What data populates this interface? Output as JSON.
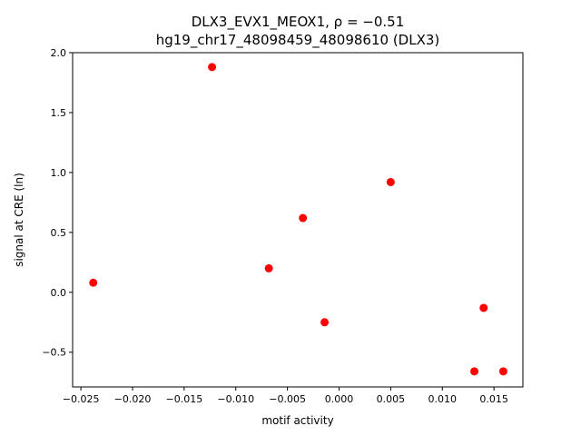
{
  "chart_data": {
    "type": "scatter",
    "title_line1": "DLX3_EVX1_MEOX1, ρ = −0.51",
    "title_line2": "hg19_chr17_48098459_48098610 (DLX3)",
    "xlabel": "motif activity",
    "ylabel": "signal at CRE (ln)",
    "xlim": [
      -0.0258,
      0.0178
    ],
    "ylim": [
      -0.79,
      2.0
    ],
    "x_ticks": [
      -0.025,
      -0.02,
      -0.015,
      -0.01,
      -0.005,
      0.0,
      0.005,
      0.01,
      0.015
    ],
    "x_tick_labels": [
      "−0.025",
      "−0.020",
      "−0.015",
      "−0.010",
      "−0.005",
      "0.000",
      "0.005",
      "0.010",
      "0.015"
    ],
    "y_ticks": [
      -0.5,
      0.0,
      0.5,
      1.0,
      1.5,
      2.0
    ],
    "y_tick_labels": [
      "−0.5",
      "0.0",
      "0.5",
      "1.0",
      "1.5",
      "2.0"
    ],
    "marker_color": "#ff0000",
    "grid": false,
    "points": [
      {
        "x": -0.0238,
        "y": 0.08
      },
      {
        "x": -0.0123,
        "y": 1.88
      },
      {
        "x": -0.0068,
        "y": 0.2
      },
      {
        "x": -0.0035,
        "y": 0.62
      },
      {
        "x": -0.0014,
        "y": -0.25
      },
      {
        "x": 0.005,
        "y": 0.92
      },
      {
        "x": 0.0131,
        "y": -0.66
      },
      {
        "x": 0.014,
        "y": -0.13
      },
      {
        "x": 0.0159,
        "y": -0.66
      }
    ]
  }
}
